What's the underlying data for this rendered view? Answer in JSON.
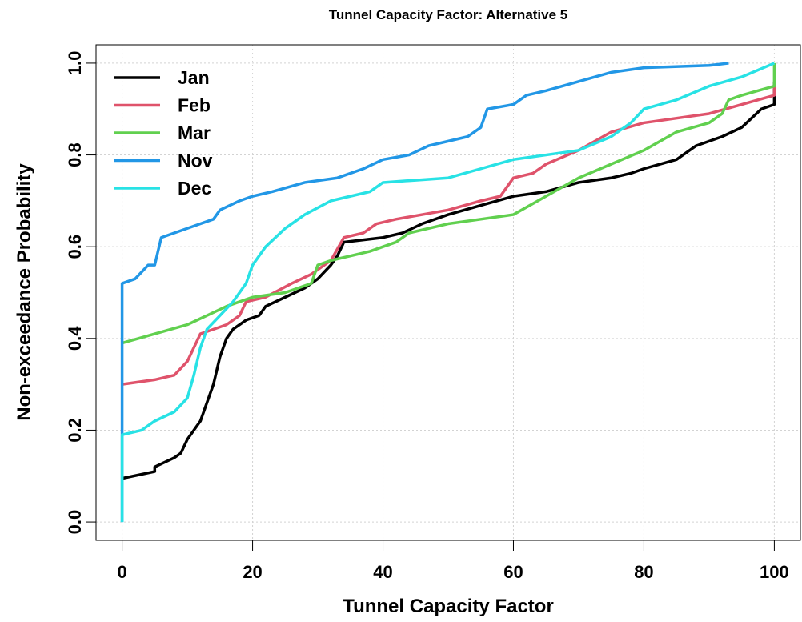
{
  "chart_data": {
    "type": "line",
    "title": "Tunnel Capacity Factor: Alternative 5",
    "xlabel": "Tunnel Capacity Factor",
    "ylabel": "Non-exceedance Probability",
    "xlim": [
      -4,
      104
    ],
    "ylim": [
      -0.04,
      1.04
    ],
    "xticks": [
      0,
      20,
      40,
      60,
      80,
      100
    ],
    "yticks": [
      {
        "value": 0,
        "label": "0.0"
      },
      0.2,
      0.4,
      0.6,
      0.8,
      {
        "value": 1,
        "label": "1.0"
      }
    ],
    "grid": true,
    "legend": "top-left",
    "series": [
      {
        "name": "Jan",
        "color": "#000000",
        "x": [
          0,
          5,
          5,
          8,
          9,
          10,
          12,
          13,
          14,
          15,
          16,
          17,
          19,
          21,
          22,
          25,
          28,
          30,
          32,
          33,
          34,
          40,
          43,
          46,
          50,
          55,
          60,
          65,
          70,
          75,
          78,
          80,
          85,
          88,
          92,
          95,
          98,
          100,
          100
        ],
        "values": [
          0.095,
          0.11,
          0.12,
          0.14,
          0.15,
          0.18,
          0.22,
          0.26,
          0.3,
          0.36,
          0.4,
          0.42,
          0.44,
          0.45,
          0.47,
          0.49,
          0.51,
          0.53,
          0.56,
          0.58,
          0.61,
          0.62,
          0.63,
          0.65,
          0.67,
          0.69,
          0.71,
          0.72,
          0.74,
          0.75,
          0.76,
          0.77,
          0.79,
          0.82,
          0.84,
          0.86,
          0.9,
          0.91,
          0.96
        ]
      },
      {
        "name": "Feb",
        "color": "#df536b",
        "x": [
          0,
          5,
          8,
          10,
          11,
          12,
          14,
          16,
          18,
          19,
          22,
          26,
          29,
          32,
          34,
          37,
          39,
          42,
          50,
          55,
          58,
          60,
          63,
          65,
          70,
          75,
          80,
          85,
          90,
          95,
          100,
          100
        ],
        "values": [
          0.3,
          0.31,
          0.32,
          0.35,
          0.38,
          0.41,
          0.42,
          0.43,
          0.45,
          0.48,
          0.49,
          0.52,
          0.54,
          0.57,
          0.62,
          0.63,
          0.65,
          0.66,
          0.68,
          0.7,
          0.71,
          0.75,
          0.76,
          0.78,
          0.81,
          0.85,
          0.87,
          0.88,
          0.89,
          0.91,
          0.93,
          0.95
        ]
      },
      {
        "name": "Mar",
        "color": "#61d04f",
        "x": [
          0,
          5,
          10,
          13,
          16,
          18,
          20,
          25,
          29,
          30,
          32,
          35,
          38,
          42,
          44,
          50,
          55,
          60,
          65,
          70,
          75,
          80,
          85,
          90,
          92,
          93,
          95,
          100,
          100
        ],
        "values": [
          0.39,
          0.41,
          0.43,
          0.45,
          0.47,
          0.48,
          0.49,
          0.5,
          0.52,
          0.56,
          0.57,
          0.58,
          0.59,
          0.61,
          0.63,
          0.65,
          0.66,
          0.67,
          0.71,
          0.75,
          0.78,
          0.81,
          0.85,
          0.87,
          0.89,
          0.92,
          0.93,
          0.95,
          1.0
        ]
      },
      {
        "name": "Nov",
        "color": "#2297e6",
        "x": [
          0,
          0,
          2,
          4,
          5,
          6,
          8,
          10,
          12,
          14,
          15,
          18,
          20,
          23,
          28,
          33,
          37,
          40,
          44,
          47,
          50,
          53,
          55,
          56,
          60,
          62,
          65,
          70,
          75,
          80,
          90,
          93
        ],
        "values": [
          0,
          0.52,
          0.53,
          0.56,
          0.56,
          0.62,
          0.63,
          0.64,
          0.65,
          0.66,
          0.68,
          0.7,
          0.71,
          0.72,
          0.74,
          0.75,
          0.77,
          0.79,
          0.8,
          0.82,
          0.83,
          0.84,
          0.86,
          0.9,
          0.91,
          0.93,
          0.94,
          0.96,
          0.98,
          0.99,
          0.995,
          1.0
        ]
      },
      {
        "name": "Dec",
        "color": "#28e2e5",
        "x": [
          0,
          0,
          3,
          5,
          8,
          10,
          11,
          12,
          13,
          15,
          17,
          19,
          20,
          22,
          25,
          28,
          32,
          35,
          38,
          40,
          45,
          50,
          55,
          60,
          65,
          70,
          75,
          78,
          80,
          85,
          90,
          95,
          100
        ],
        "values": [
          0,
          0.19,
          0.2,
          0.22,
          0.24,
          0.27,
          0.32,
          0.38,
          0.42,
          0.45,
          0.48,
          0.52,
          0.56,
          0.6,
          0.64,
          0.67,
          0.7,
          0.71,
          0.72,
          0.74,
          0.745,
          0.75,
          0.77,
          0.79,
          0.8,
          0.81,
          0.84,
          0.87,
          0.9,
          0.92,
          0.95,
          0.97,
          1.0
        ]
      }
    ]
  }
}
